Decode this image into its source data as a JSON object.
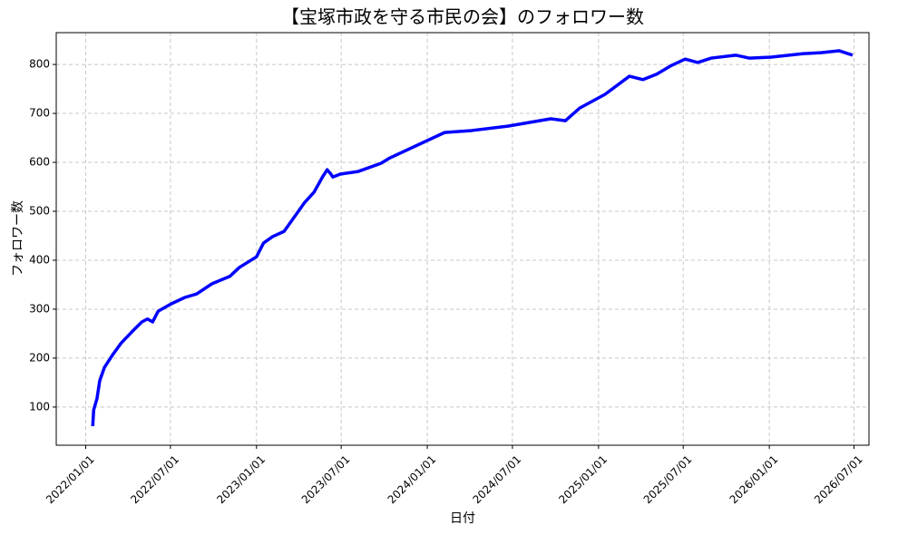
{
  "chart_data": {
    "type": "line",
    "title": "【宝塚市政を守る市民の会】のフォロワー数",
    "xlabel": "日付",
    "ylabel": "フォロワー数",
    "x": [
      "2022-01-16",
      "2022-01-18",
      "2022-01-25",
      "2022-01-31",
      "2022-02-10",
      "2022-02-27",
      "2022-03-18",
      "2022-04-10",
      "2022-05-01",
      "2022-05-13",
      "2022-05-24",
      "2022-06-05",
      "2022-07-03",
      "2022-08-01",
      "2022-08-26",
      "2022-09-28",
      "2022-11-05",
      "2022-11-25",
      "2023-01-01",
      "2023-01-16",
      "2023-02-04",
      "2023-03-01",
      "2023-03-30",
      "2023-04-13",
      "2023-05-04",
      "2023-05-22",
      "2023-06-01",
      "2023-06-09",
      "2023-06-13",
      "2023-06-29",
      "2023-08-05",
      "2023-09-24",
      "2023-10-13",
      "2024-02-07",
      "2024-04-05",
      "2024-06-21",
      "2024-09-21",
      "2024-10-22",
      "2024-11-22",
      "2025-01-15",
      "2025-03-08",
      "2025-04-06",
      "2025-05-05",
      "2025-06-06",
      "2025-07-05",
      "2025-08-01",
      "2025-08-30",
      "2025-10-21",
      "2025-11-19",
      "2026-01-05",
      "2026-03-13",
      "2026-04-21",
      "2026-05-30",
      "2026-06-28"
    ],
    "series": [
      {
        "name": "フォロワー数",
        "color": "#0000ff",
        "values": [
          61,
          94,
          117,
          154,
          181,
          206,
          231,
          254,
          274,
          280,
          274,
          296,
          311,
          324,
          331,
          352,
          367,
          385,
          407,
          435,
          448,
          459,
          498,
          517,
          539,
          570,
          585,
          576,
          570,
          576,
          581,
          598,
          609,
          661,
          665,
          674,
          689,
          685,
          711,
          739,
          776,
          769,
          780,
          798,
          811,
          804,
          813,
          819,
          813,
          815,
          822,
          824,
          828,
          819
        ]
      }
    ],
    "xlim": [
      "2021-10-30",
      "2026-08-02"
    ],
    "xticks": [
      {
        "value": "2022-01-01",
        "label": "2022/01/01"
      },
      {
        "value": "2022-07-01",
        "label": "2022/07/01"
      },
      {
        "value": "2023-01-01",
        "label": "2023/01/01"
      },
      {
        "value": "2023-07-01",
        "label": "2023/07/01"
      },
      {
        "value": "2024-01-01",
        "label": "2024/01/01"
      },
      {
        "value": "2024-07-01",
        "label": "2024/07/01"
      },
      {
        "value": "2025-01-01",
        "label": "2025/01/01"
      },
      {
        "value": "2025-07-01",
        "label": "2025/07/01"
      },
      {
        "value": "2026-01-01",
        "label": "2026/01/01"
      },
      {
        "value": "2026-07-01",
        "label": "2026/07/01"
      }
    ],
    "ylim": [
      22,
      865
    ],
    "yticks": [
      100,
      200,
      300,
      400,
      500,
      600,
      700,
      800
    ],
    "grid": true
  }
}
